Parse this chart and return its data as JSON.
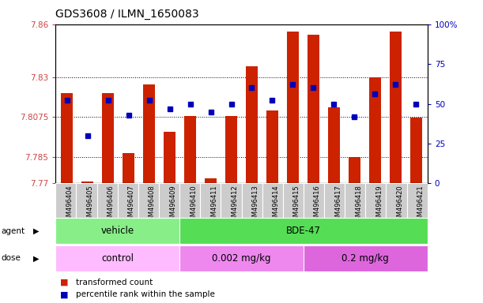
{
  "title": "GDS3608 / ILMN_1650083",
  "samples": [
    "GSM496404",
    "GSM496405",
    "GSM496406",
    "GSM496407",
    "GSM496408",
    "GSM496409",
    "GSM496410",
    "GSM496411",
    "GSM496412",
    "GSM496413",
    "GSM496414",
    "GSM496415",
    "GSM496416",
    "GSM496417",
    "GSM496418",
    "GSM496419",
    "GSM496420",
    "GSM496421"
  ],
  "transformed_counts": [
    7.821,
    7.771,
    7.821,
    7.787,
    7.826,
    7.799,
    7.808,
    7.773,
    7.808,
    7.836,
    7.811,
    7.856,
    7.854,
    7.813,
    7.785,
    7.83,
    7.856,
    7.807
  ],
  "percentile_ranks": [
    52,
    30,
    52,
    43,
    52,
    47,
    50,
    45,
    50,
    60,
    52,
    62,
    60,
    50,
    42,
    56,
    62,
    50
  ],
  "ylim_left": [
    7.77,
    7.86
  ],
  "ylim_right": [
    0,
    100
  ],
  "yticks_left": [
    7.77,
    7.785,
    7.8075,
    7.83,
    7.86
  ],
  "yticks_right": [
    0,
    25,
    50,
    75,
    100
  ],
  "bar_color": "#CC2200",
  "dot_color": "#0000BB",
  "agent_groups": [
    {
      "label": "vehicle",
      "start": 0,
      "end": 6,
      "color": "#88EE88"
    },
    {
      "label": "BDE-47",
      "start": 6,
      "end": 18,
      "color": "#55DD55"
    }
  ],
  "dose_groups": [
    {
      "label": "control",
      "start": 0,
      "end": 6,
      "color": "#FFBBFF"
    },
    {
      "label": "0.002 mg/kg",
      "start": 6,
      "end": 12,
      "color": "#EE88EE"
    },
    {
      "label": "0.2 mg/kg",
      "start": 12,
      "end": 18,
      "color": "#DD66DD"
    }
  ],
  "legend_items": [
    {
      "label": "transformed count",
      "color": "#CC2200"
    },
    {
      "label": "percentile rank within the sample",
      "color": "#0000BB"
    }
  ],
  "bg_color": "#FFFFFF",
  "tick_label_bg": "#CCCCCC",
  "left_label_color": "#CC4444",
  "right_label_color": "#0000BB"
}
